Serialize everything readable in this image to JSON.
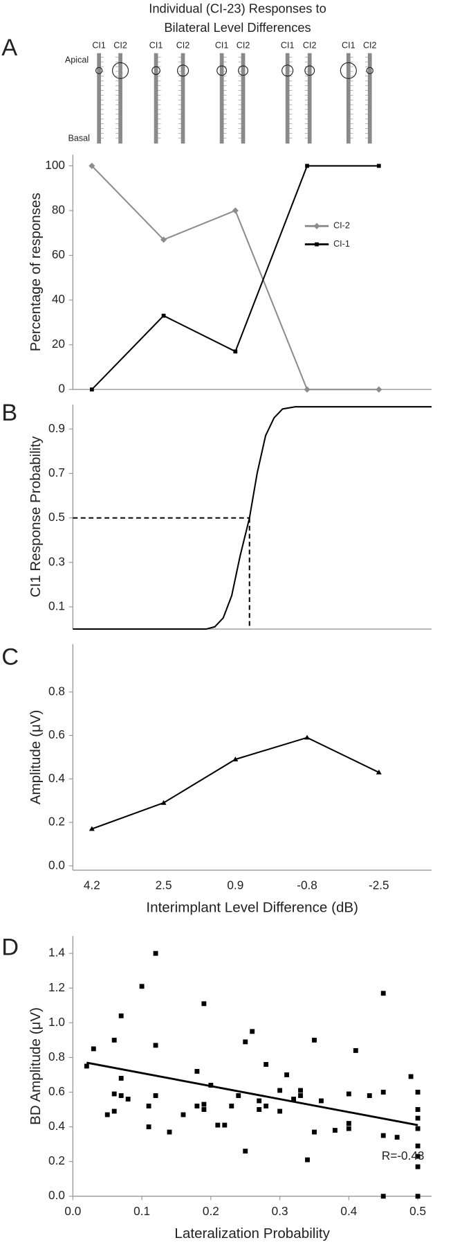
{
  "figure_title": [
    "Individual (CI-23) Responses to",
    "Bilateral Level Differences"
  ],
  "panel_labels": [
    "A",
    "B",
    "C",
    "D"
  ],
  "electrode_diagram": {
    "apical": "Apical",
    "basal": "Basal",
    "pairs": [
      [
        "CI1",
        "CI2"
      ],
      [
        "CI1",
        "CI2"
      ],
      [
        "CI1",
        "CI2"
      ],
      [
        "CI1",
        "CI2"
      ],
      [
        "CI1",
        "CI2"
      ]
    ]
  },
  "chart_data": [
    {
      "type": "line",
      "categories": [
        null,
        null,
        null,
        null,
        null
      ],
      "ylabel": "Percentage of responses",
      "ylim": [
        0,
        105
      ],
      "yticks": [
        0,
        20,
        40,
        60,
        80,
        100
      ],
      "legend": "right",
      "series": [
        {
          "name": "CI-2",
          "color": "#8c8c8c",
          "marker": "diamond",
          "values": [
            100,
            67,
            80,
            0,
            0
          ]
        },
        {
          "name": "CI-1",
          "color": "#000000",
          "marker": "square",
          "values": [
            0,
            33,
            17,
            100,
            100
          ]
        }
      ]
    },
    {
      "type": "line",
      "ylabel": "CI1 Response Probability",
      "color": "#000000",
      "x": [
        4.65,
        1.5,
        1.3,
        1.1,
        0.9,
        0.7,
        0.48,
        0.3,
        0.1,
        -0.1,
        -0.3,
        -0.6,
        -3.82
      ],
      "values": [
        0,
        0,
        0.01,
        0.05,
        0.15,
        0.33,
        0.5,
        0.7,
        0.87,
        0.95,
        0.99,
        1.0,
        1.0
      ],
      "xlim": [
        4.65,
        -3.82
      ],
      "ylim": [
        0,
        1.01
      ],
      "yticks": [
        0.1,
        0.3,
        0.5,
        0.7,
        0.9
      ],
      "threshold": {
        "x": 0.48,
        "y": 0.5
      }
    },
    {
      "type": "line",
      "categories": [
        "4.2",
        "2.5",
        "0.9",
        "-0.8",
        "-2.5"
      ],
      "xlabel": "Interimplant Level Difference (dB)",
      "ylabel": "Amplitude (μV)",
      "ylim": [
        -0.02,
        1.02
      ],
      "yticks": [
        {
          "value": 0,
          "label": "0.0"
        },
        0.2,
        0.4,
        0.6,
        0.8
      ],
      "series": [
        {
          "color": "#000000",
          "marker": "triangle",
          "values": [
            0.17,
            0.29,
            0.49,
            0.59,
            0.43
          ]
        }
      ]
    },
    {
      "type": "scatter",
      "xlabel": "Lateralization Probability",
      "ylabel": "BD Amplitude (μV)",
      "color": "#000000",
      "x": [
        0.02,
        0.03,
        0.05,
        0.06,
        0.06,
        0.06,
        0.07,
        0.07,
        0.07,
        0.08,
        0.1,
        0.11,
        0.11,
        0.12,
        0.12,
        0.12,
        0.14,
        0.16,
        0.18,
        0.18,
        0.19,
        0.19,
        0.19,
        0.2,
        0.21,
        0.22,
        0.23,
        0.24,
        0.25,
        0.25,
        0.26,
        0.27,
        0.27,
        0.28,
        0.28,
        0.3,
        0.3,
        0.31,
        0.32,
        0.33,
        0.33,
        0.34,
        0.35,
        0.35,
        0.36,
        0.38,
        0.4,
        0.4,
        0.4,
        0.41,
        0.43,
        0.45,
        0.45,
        0.45,
        0.45,
        0.47,
        0.49,
        0.5,
        0.5,
        0.5,
        0.5,
        0.5,
        0.5,
        0.5,
        0.5
      ],
      "values": [
        0.75,
        0.85,
        0.47,
        0.9,
        0.59,
        0.49,
        1.04,
        0.68,
        0.58,
        0.56,
        1.21,
        0.52,
        0.4,
        1.4,
        0.87,
        0.58,
        0.37,
        0.47,
        0.72,
        0.52,
        1.11,
        0.53,
        0.5,
        0.64,
        0.41,
        0.41,
        0.52,
        0.58,
        0.89,
        0.26,
        0.95,
        0.55,
        0.5,
        0.76,
        0.52,
        0.61,
        0.49,
        0.7,
        0.56,
        0.61,
        0.58,
        0.21,
        0.9,
        0.37,
        0.55,
        0.38,
        0.59,
        0.42,
        0.39,
        0.84,
        0.58,
        1.17,
        0.6,
        0.35,
        0.0,
        0.34,
        0.69,
        0.6,
        0.5,
        0.45,
        0.39,
        0.29,
        0.23,
        0.17,
        0.0
      ],
      "xlim": [
        0,
        0.52
      ],
      "ylim": [
        0,
        1.5
      ],
      "xticks": [
        {
          "value": 0,
          "label": "0.0"
        },
        0.1,
        0.2,
        0.3,
        0.4,
        0.5
      ],
      "yticks": [
        {
          "value": 0,
          "label": "0.0"
        },
        0.2,
        0.4,
        0.6,
        0.8,
        {
          "value": 1,
          "label": "1.0"
        },
        1.2,
        1.4
      ],
      "fit": {
        "x": [
          0.02,
          0.5
        ],
        "values": [
          0.77,
          0.41
        ]
      },
      "annotation": "R=-0.43"
    }
  ]
}
